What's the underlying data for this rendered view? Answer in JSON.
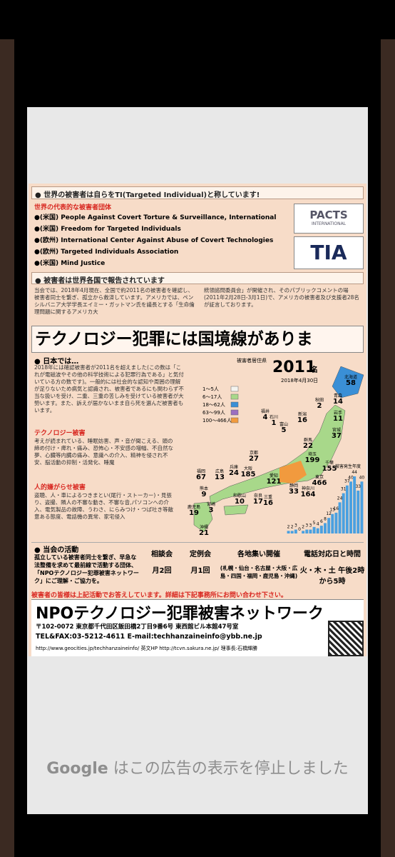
{
  "ad": {
    "section1_title": "● 世界の被害者は自らをTI(Targeted Individual)と称しています!",
    "groups_title": "世界の代表的な被害者団体",
    "groups": [
      "●(米国) People Against Covert Torture & Surveillance, International",
      "●(米国) Freedom for Targeted Individuals",
      "●(欧州) International Center Against Abuse of Covert Technologies",
      "●(欧州) Targeted Individuals Association",
      "●(米国) Mind Justice"
    ],
    "logo1": "PACTS",
    "logo1_sub": "INTERNATIONAL",
    "logo2": "TIA",
    "section2_title": "● 被害者は世界各国で報告されています",
    "section2_left": "当会では、2018年4月現在、全国で約2011名の被害者を確認し、被害者同士を繋ぎ、孤立から救済しています。アメリカでは、ペンシルバニア大学学長エイミー・ガットマン氏を議長とする「生命倫理問題に関するアメリカ大",
    "section2_right": "統領諮問委員会」が開催され、そのパブリックコメントの場(2011年2月28日-3月1日)で、アメリカの被害者及び支援者28名が証言しております。",
    "headline": "テクノロジー犯罪には国境線がありま",
    "japan_title": "● 日本では…",
    "japan_text": "2018年には確認被害者が2011名を超えました(この数は「これが電磁波やその他の科学技術による犯罪行為である」と気付いている方の数です)。一般的には社会的な認知や周囲の理解が足りないため病気と認識され、被害者であるにも関わらず不当な扱いを受け、二重、三重の苦しみを受けている被害者が大勢います。また、訴えが届かないまま自ら死を選んだ被害者もいます。",
    "tech_title": "テクノロジー被害",
    "tech_text": "考えが読まれている、睡眠妨害、声・音が聞こえる、頭の締め付け・痺れ・痛み、恐怖心・不安感の増幅、不自然な夢、心臓等内臓の痛み、意識への介入、精神を侵され不安、脳活動の抑制・活発化、睡魔",
    "harass_title": "人的嫌がらせ被害",
    "harass_text": "盗聴、人・車によるつきまとい(尾行・ストーカー)・見張り、盗撮、隣人の不審な動き、不審な音,パソコンへの介入、電気製品の故障、うわさ、にらみつけ・つば吐き等敵意ある態度、電話機の異常、家宅侵入",
    "map_title": "被害者居住県",
    "count": "2011",
    "count_unit": "名",
    "date": "2018年4月30日",
    "legend": [
      {
        "name": "1〜5人",
        "color": "#f4f4f0"
      },
      {
        "name": "6〜17人",
        "color": "#a8d88a"
      },
      {
        "name": "18〜62人",
        "color": "#3a8fd6"
      },
      {
        "name": "63〜99人",
        "color": "#9b6fc0"
      },
      {
        "name": "100〜466人",
        "color": "#f19a3e"
      }
    ],
    "prefectures": [
      {
        "name": "北海道",
        "value": 58
      },
      {
        "name": "青森",
        "value": 14
      },
      {
        "name": "秋田",
        "value": 2
      },
      {
        "name": "岩手",
        "value": 11
      },
      {
        "name": "宮城",
        "value": 37
      },
      {
        "name": "新潟",
        "value": 16
      },
      {
        "name": "富山",
        "value": 5
      },
      {
        "name": "石川",
        "value": 1
      },
      {
        "name": "福井",
        "value": 4
      },
      {
        "name": "群馬",
        "value": 22
      },
      {
        "name": "埼玉",
        "value": 199
      },
      {
        "name": "千葉",
        "value": 155
      },
      {
        "name": "東京",
        "value": 466
      },
      {
        "name": "神奈川",
        "value": 164
      },
      {
        "name": "静岡",
        "value": 33
      },
      {
        "name": "愛知",
        "value": 121
      },
      {
        "name": "京都",
        "value": 27
      },
      {
        "name": "大阪",
        "value": 185
      },
      {
        "name": "兵庫",
        "value": 24
      },
      {
        "name": "奈良",
        "value": 17
      },
      {
        "name": "和歌山",
        "value": 10
      },
      {
        "name": "三重",
        "value": 16
      },
      {
        "name": "広島",
        "value": 13
      },
      {
        "name": "福岡",
        "value": 67
      },
      {
        "name": "熊本",
        "value": 9
      },
      {
        "name": "宮崎",
        "value": 3
      },
      {
        "name": "鹿児島",
        "value": 19
      },
      {
        "name": "沖縄",
        "value": 21
      }
    ],
    "year_chart": {
      "title": "被害発生年度",
      "color": "#4aa0e0",
      "values": [
        2,
        2,
        3,
        0,
        2,
        3,
        3,
        5,
        4,
        6,
        8,
        12,
        15,
        16,
        24,
        31,
        37,
        40,
        44,
        33,
        40
      ]
    },
    "activity_title": "● 当会の活動",
    "activity_text": "孤立している被害者同士を繋ぎ、早急な法整備を求めて最前線で活動する団体、「NPOテクノロジー犯罪被害ネットワーク」にご理解・ご協力を。",
    "events": [
      {
        "name": "相談会",
        "detail": "月2回"
      },
      {
        "name": "定例会",
        "detail": "月1回"
      },
      {
        "name": "各地集い開催",
        "detail": "(札幌・仙台・名古屋・大阪・広島・四国・福岡・鹿児島・沖縄)"
      },
      {
        "name": "電話対応日と時間",
        "detail": "火・木・土 午後2時から5時"
      }
    ],
    "notice": "被害者の皆様は上記活動でお答えしています。詳細は下記事務所にお問い合わせ下さい。",
    "org_name": "NPOテクノロジー犯罪被害ネットワーク",
    "address": "〒102-0072 東京都千代田区飯田橋2丁目9番6号 東西館ビル本館47号室",
    "tel": "TEL&FAX:03-5212-4611 E-mail:techhanzaineinfo@ybb.ne.jp",
    "urls": "http://www.geocities.jp/techhanzaineinfo/ 英文HP http://tcvn.sakura.ne.jp/ 理事長:石橋輝勝"
  },
  "google_notice": {
    "brand": "Google",
    "message": "はこの広告の表示を停止しました"
  }
}
